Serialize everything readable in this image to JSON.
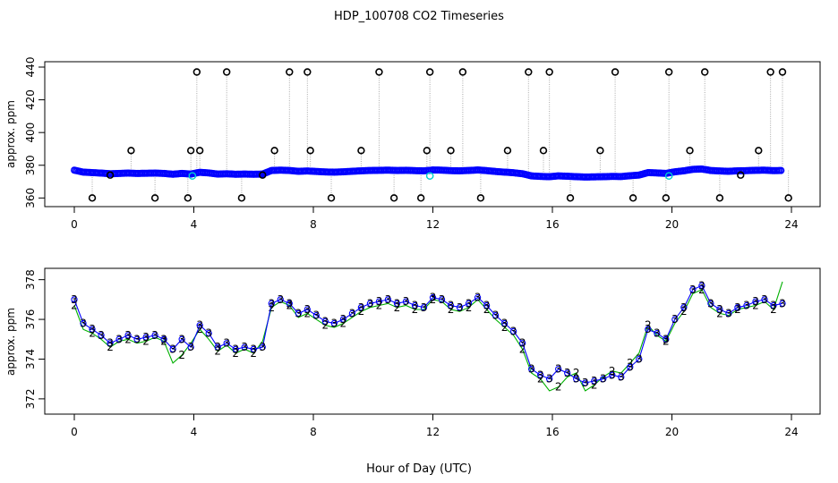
{
  "title": "HDP_100708  CO2 Timeseries",
  "xlabel": "Hour of Day (UTC)",
  "colors": {
    "black": "#000000",
    "blue": "#0000ff",
    "green": "#00b000",
    "cyan": "#00d0d0",
    "grey": "#a8a8a8"
  },
  "chart_data": [
    {
      "type": "scatter",
      "ylabel": "approx. ppm",
      "xlim": [
        0,
        24
      ],
      "ylim": [
        358,
        440
      ],
      "x_ticks": [
        "0",
        "4",
        "8",
        "12",
        "16",
        "20",
        "24"
      ],
      "y_ticks": [
        "360",
        "380",
        "400",
        "420",
        "440"
      ],
      "grid": false,
      "spike_values": [
        360,
        374,
        389,
        437
      ],
      "series": [
        {
          "name": "",
          "x": [
            0.0,
            0.3,
            0.6,
            0.9,
            1.2,
            1.5,
            1.8,
            2.1,
            2.4,
            2.7,
            3.0,
            3.3,
            3.6,
            3.9,
            4.2,
            4.5,
            4.8,
            5.1,
            5.4,
            5.7,
            6.0,
            6.3,
            6.6,
            6.9,
            7.2,
            7.5,
            7.8,
            8.1,
            8.4,
            8.7,
            9.0,
            9.3,
            9.6,
            9.9,
            10.2,
            10.5,
            10.8,
            11.1,
            11.4,
            11.7,
            12.0,
            12.3,
            12.6,
            12.9,
            13.2,
            13.5,
            13.8,
            14.1,
            14.4,
            14.7,
            15.0,
            15.3,
            15.6,
            15.9,
            16.2,
            16.5,
            16.8,
            17.1,
            17.4,
            17.7,
            18.0,
            18.3,
            18.6,
            18.9,
            19.2,
            19.5,
            19.8,
            20.1,
            20.4,
            20.7,
            21.0,
            21.3,
            21.6,
            21.9,
            22.2,
            22.5,
            22.8,
            23.1,
            23.4,
            23.7
          ],
          "y": [
            377.0,
            375.8,
            375.5,
            375.2,
            374.8,
            375.0,
            375.2,
            375.0,
            375.1,
            375.2,
            375.0,
            374.5,
            375.0,
            374.6,
            375.7,
            375.3,
            374.6,
            374.8,
            374.5,
            374.6,
            374.5,
            374.6,
            376.8,
            377.0,
            376.8,
            376.3,
            376.5,
            376.2,
            375.9,
            375.8,
            376.0,
            376.3,
            376.6,
            376.8,
            376.9,
            377.0,
            376.8,
            376.9,
            376.7,
            376.6,
            377.1,
            377.0,
            376.7,
            376.6,
            376.8,
            377.1,
            376.7,
            376.2,
            375.8,
            375.4,
            374.8,
            373.5,
            373.2,
            373.0,
            373.5,
            373.3,
            373.0,
            372.8,
            372.9,
            373.0,
            373.2,
            373.1,
            373.6,
            374.0,
            375.5,
            375.3,
            375.0,
            376.0,
            376.6,
            377.5,
            377.7,
            376.8,
            376.5,
            376.3,
            376.6,
            376.7,
            376.9,
            377.0,
            376.7,
            376.8
          ]
        }
      ]
    },
    {
      "type": "line",
      "ylabel": "approx. ppm",
      "xlim": [
        0,
        24
      ],
      "ylim": [
        371.5,
        378.3
      ],
      "x_ticks": [
        "0",
        "4",
        "8",
        "12",
        "16",
        "20",
        "24"
      ],
      "y_ticks": [
        "372",
        "374",
        "376",
        "378"
      ],
      "grid": false,
      "series": [
        {
          "name": "3",
          "x": [
            0.0,
            0.3,
            0.6,
            0.9,
            1.2,
            1.5,
            1.8,
            2.1,
            2.4,
            2.7,
            3.0,
            3.3,
            3.6,
            3.9,
            4.2,
            4.5,
            4.8,
            5.1,
            5.4,
            5.7,
            6.0,
            6.3,
            6.6,
            6.9,
            7.2,
            7.5,
            7.8,
            8.1,
            8.4,
            8.7,
            9.0,
            9.3,
            9.6,
            9.9,
            10.2,
            10.5,
            10.8,
            11.1,
            11.4,
            11.7,
            12.0,
            12.3,
            12.6,
            12.9,
            13.2,
            13.5,
            13.8,
            14.1,
            14.4,
            14.7,
            15.0,
            15.3,
            15.6,
            15.9,
            16.2,
            16.5,
            16.8,
            17.1,
            17.4,
            17.7,
            18.0,
            18.3,
            18.6,
            18.9,
            19.2,
            19.5,
            19.8,
            20.1,
            20.4,
            20.7,
            21.0,
            21.3,
            21.6,
            21.9,
            22.2,
            22.5,
            22.8,
            23.1,
            23.4,
            23.7
          ],
          "y": [
            377.0,
            375.8,
            375.5,
            375.2,
            374.8,
            375.0,
            375.2,
            375.0,
            375.1,
            375.2,
            375.0,
            374.5,
            375.0,
            374.6,
            375.7,
            375.3,
            374.6,
            374.8,
            374.5,
            374.6,
            374.5,
            374.6,
            376.8,
            377.0,
            376.8,
            376.3,
            376.5,
            376.2,
            375.9,
            375.8,
            376.0,
            376.3,
            376.6,
            376.8,
            376.9,
            377.0,
            376.8,
            376.9,
            376.7,
            376.6,
            377.1,
            377.0,
            376.7,
            376.6,
            376.8,
            377.1,
            376.7,
            376.2,
            375.8,
            375.4,
            374.8,
            373.5,
            373.2,
            373.0,
            373.5,
            373.3,
            373.0,
            372.8,
            372.9,
            373.0,
            373.2,
            373.1,
            373.6,
            374.0,
            375.5,
            375.3,
            375.0,
            376.0,
            376.6,
            377.5,
            377.7,
            376.8,
            376.5,
            376.3,
            376.6,
            376.7,
            376.9,
            377.0,
            376.7,
            376.8
          ]
        },
        {
          "name": "2",
          "x": [
            0.0,
            0.3,
            0.6,
            0.9,
            1.2,
            1.5,
            1.8,
            2.1,
            2.4,
            2.7,
            3.0,
            3.3,
            3.6,
            3.9,
            4.2,
            4.5,
            4.8,
            5.1,
            5.4,
            5.7,
            6.0,
            6.3,
            6.6,
            6.9,
            7.2,
            7.5,
            7.8,
            8.1,
            8.4,
            8.7,
            9.0,
            9.3,
            9.6,
            9.9,
            10.2,
            10.5,
            10.8,
            11.1,
            11.4,
            11.7,
            12.0,
            12.3,
            12.6,
            12.9,
            13.2,
            13.5,
            13.8,
            14.1,
            14.4,
            14.7,
            15.0,
            15.3,
            15.6,
            15.9,
            16.2,
            16.5,
            16.8,
            17.1,
            17.4,
            17.7,
            18.0,
            18.3,
            18.6,
            18.9,
            19.2,
            19.5,
            19.8,
            20.1,
            20.4,
            20.7,
            21.0,
            21.3,
            21.6,
            21.9,
            22.2,
            22.5,
            22.8,
            23.1,
            23.4,
            23.7
          ],
          "y": [
            376.7,
            375.5,
            375.3,
            375.0,
            374.6,
            374.9,
            375.0,
            374.8,
            374.9,
            375.1,
            374.9,
            373.8,
            374.2,
            374.8,
            375.5,
            375.0,
            374.4,
            374.7,
            374.3,
            374.5,
            374.3,
            374.9,
            376.6,
            376.9,
            376.7,
            376.1,
            376.3,
            376.0,
            375.7,
            375.6,
            375.8,
            376.1,
            376.4,
            376.6,
            376.7,
            376.8,
            376.6,
            376.7,
            376.5,
            376.5,
            377.0,
            376.9,
            376.5,
            376.4,
            376.6,
            377.0,
            376.5,
            376.0,
            375.6,
            375.2,
            374.5,
            373.3,
            373.0,
            372.4,
            372.6,
            373.1,
            373.3,
            372.4,
            372.7,
            373.1,
            373.4,
            373.3,
            373.8,
            374.3,
            375.7,
            375.2,
            374.9,
            375.8,
            376.4,
            377.3,
            377.5,
            376.6,
            376.3,
            376.2,
            376.5,
            376.6,
            376.7,
            376.9,
            376.5,
            377.9
          ]
        }
      ]
    }
  ]
}
